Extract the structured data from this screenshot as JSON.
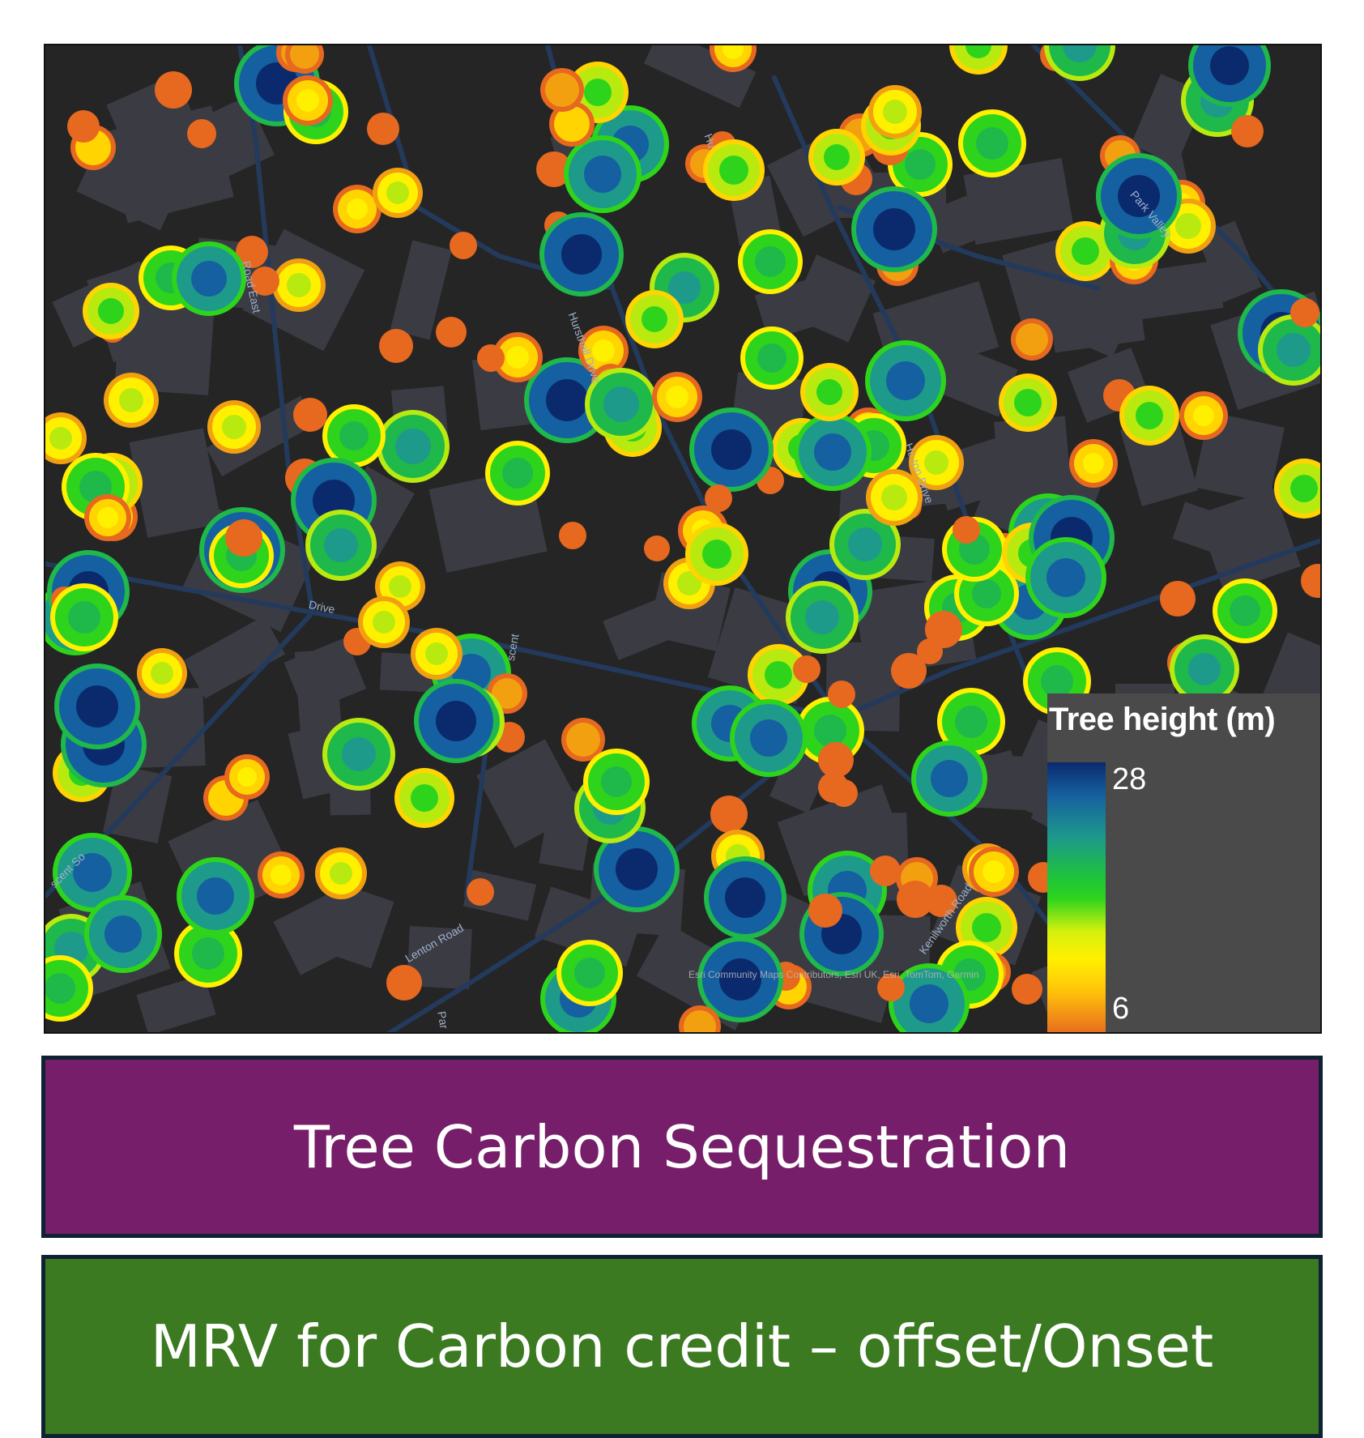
{
  "map": {
    "road_labels": [
      "Road East",
      "Park Valley",
      "Hursthall Drive",
      "Hu",
      "Drive",
      "Hu  ton Drive",
      "Lenton Road",
      "Kenilworth Road",
      "scent",
      "scent So",
      "Par"
    ],
    "attribution": "Esri Community Maps Contributors, Esri UK, Esri, TomTom, Garmin"
  },
  "legend": {
    "title": "Tree height (m)",
    "max": "28",
    "min": "6",
    "colors": [
      "#0b2a6e",
      "#1e9a8a",
      "#2ed41c",
      "#fff000",
      "#e7681f"
    ]
  },
  "banners": {
    "top": "Tree Carbon Sequestration",
    "bottom": "MRV for Carbon credit – offset/Onset"
  },
  "colors": {
    "map_background": "#252525",
    "building": "#3b3b44",
    "road": "#233a5c",
    "banner_purple": "#761e69",
    "banner_green": "#3b7a20"
  }
}
